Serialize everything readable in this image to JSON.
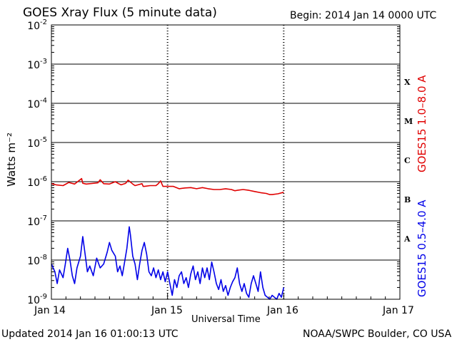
{
  "chart_data": {
    "type": "line",
    "title": "GOES Xray Flux (5 minute data)",
    "begin_label": "Begin:  2014 Jan 14 0000 UTC",
    "xlabel": "Universal Time",
    "ylabel": "Watts m⁻²",
    "x_ticks": [
      "Jan 14",
      "Jan 15",
      "Jan 16",
      "Jan 17"
    ],
    "y_ticks": [
      {
        "base": "10",
        "exp": "-2"
      },
      {
        "base": "10",
        "exp": "-3"
      },
      {
        "base": "10",
        "exp": "-4"
      },
      {
        "base": "10",
        "exp": "-5"
      },
      {
        "base": "10",
        "exp": "-6"
      },
      {
        "base": "10",
        "exp": "-7"
      },
      {
        "base": "10",
        "exp": "-8"
      },
      {
        "base": "10",
        "exp": "-9"
      }
    ],
    "flare_classes": [
      {
        "label": "X",
        "log_flux": -3.5
      },
      {
        "label": "M",
        "log_flux": -4.5
      },
      {
        "label": "C",
        "log_flux": -5.5
      },
      {
        "label": "B",
        "log_flux": -6.5
      },
      {
        "label": "A",
        "log_flux": -7.5
      }
    ],
    "x_range_days": [
      0,
      3
    ],
    "y_range_log10": [
      -9,
      -2
    ],
    "y_scale": "log",
    "grid": true,
    "series": [
      {
        "name": "GOES15 1.0–8.0 A",
        "color": "#e00000",
        "points": [
          [
            0.0,
            -6.05
          ],
          [
            0.04,
            -6.08
          ],
          [
            0.1,
            -6.1
          ],
          [
            0.15,
            -6.02
          ],
          [
            0.2,
            -6.06
          ],
          [
            0.26,
            -5.92
          ],
          [
            0.27,
            -6.04
          ],
          [
            0.3,
            -6.06
          ],
          [
            0.4,
            -6.03
          ],
          [
            0.42,
            -5.95
          ],
          [
            0.45,
            -6.05
          ],
          [
            0.5,
            -6.06
          ],
          [
            0.55,
            -6.0
          ],
          [
            0.58,
            -6.05
          ],
          [
            0.6,
            -6.08
          ],
          [
            0.64,
            -6.04
          ],
          [
            0.66,
            -5.96
          ],
          [
            0.7,
            -6.06
          ],
          [
            0.72,
            -6.1
          ],
          [
            0.78,
            -6.05
          ],
          [
            0.79,
            -6.12
          ],
          [
            0.8,
            -6.12
          ],
          [
            0.85,
            -6.1
          ],
          [
            0.9,
            -6.1
          ],
          [
            0.92,
            -6.05
          ],
          [
            0.94,
            -5.98
          ],
          [
            0.96,
            -6.12
          ],
          [
            1.0,
            -6.12
          ],
          [
            1.05,
            -6.12
          ],
          [
            1.1,
            -6.18
          ],
          [
            1.15,
            -6.16
          ],
          [
            1.2,
            -6.15
          ],
          [
            1.25,
            -6.18
          ],
          [
            1.3,
            -6.15
          ],
          [
            1.35,
            -6.18
          ],
          [
            1.4,
            -6.2
          ],
          [
            1.45,
            -6.2
          ],
          [
            1.5,
            -6.18
          ],
          [
            1.55,
            -6.2
          ],
          [
            1.58,
            -6.23
          ],
          [
            1.6,
            -6.22
          ],
          [
            1.65,
            -6.2
          ],
          [
            1.7,
            -6.22
          ],
          [
            1.75,
            -6.25
          ],
          [
            1.8,
            -6.28
          ],
          [
            1.85,
            -6.3
          ],
          [
            1.88,
            -6.33
          ],
          [
            1.9,
            -6.33
          ],
          [
            1.95,
            -6.31
          ],
          [
            2.0,
            -6.27
          ]
        ]
      },
      {
        "name": "GOES15 0.5–4.0 A",
        "color": "#0000e8",
        "points": [
          [
            0.0,
            -8.1
          ],
          [
            0.03,
            -8.3
          ],
          [
            0.05,
            -8.6
          ],
          [
            0.07,
            -8.25
          ],
          [
            0.1,
            -8.45
          ],
          [
            0.12,
            -8.1
          ],
          [
            0.14,
            -7.7
          ],
          [
            0.16,
            -8.0
          ],
          [
            0.18,
            -8.4
          ],
          [
            0.2,
            -8.6
          ],
          [
            0.22,
            -8.2
          ],
          [
            0.25,
            -7.9
          ],
          [
            0.26,
            -7.65
          ],
          [
            0.27,
            -7.4
          ],
          [
            0.29,
            -7.85
          ],
          [
            0.31,
            -8.3
          ],
          [
            0.33,
            -8.15
          ],
          [
            0.36,
            -8.4
          ],
          [
            0.39,
            -7.95
          ],
          [
            0.42,
            -8.2
          ],
          [
            0.45,
            -8.1
          ],
          [
            0.48,
            -7.8
          ],
          [
            0.5,
            -7.55
          ],
          [
            0.52,
            -7.75
          ],
          [
            0.55,
            -7.9
          ],
          [
            0.57,
            -8.3
          ],
          [
            0.59,
            -8.15
          ],
          [
            0.61,
            -8.4
          ],
          [
            0.63,
            -8.05
          ],
          [
            0.65,
            -7.7
          ],
          [
            0.67,
            -7.15
          ],
          [
            0.68,
            -7.35
          ],
          [
            0.7,
            -7.9
          ],
          [
            0.72,
            -8.1
          ],
          [
            0.74,
            -8.5
          ],
          [
            0.76,
            -8.1
          ],
          [
            0.78,
            -7.75
          ],
          [
            0.8,
            -7.55
          ],
          [
            0.82,
            -7.85
          ],
          [
            0.84,
            -8.3
          ],
          [
            0.86,
            -8.4
          ],
          [
            0.88,
            -8.2
          ],
          [
            0.9,
            -8.45
          ],
          [
            0.92,
            -8.25
          ],
          [
            0.94,
            -8.5
          ],
          [
            0.96,
            -8.3
          ],
          [
            0.98,
            -8.55
          ],
          [
            1.0,
            -8.3
          ],
          [
            1.02,
            -8.6
          ],
          [
            1.04,
            -8.9
          ],
          [
            1.06,
            -8.5
          ],
          [
            1.08,
            -8.7
          ],
          [
            1.1,
            -8.4
          ],
          [
            1.12,
            -8.3
          ],
          [
            1.14,
            -8.6
          ],
          [
            1.16,
            -8.45
          ],
          [
            1.18,
            -8.7
          ],
          [
            1.2,
            -8.35
          ],
          [
            1.22,
            -8.15
          ],
          [
            1.24,
            -8.5
          ],
          [
            1.26,
            -8.3
          ],
          [
            1.28,
            -8.6
          ],
          [
            1.3,
            -8.2
          ],
          [
            1.32,
            -8.45
          ],
          [
            1.34,
            -8.2
          ],
          [
            1.36,
            -8.5
          ],
          [
            1.38,
            -8.05
          ],
          [
            1.4,
            -8.3
          ],
          [
            1.42,
            -8.6
          ],
          [
            1.44,
            -8.75
          ],
          [
            1.46,
            -8.5
          ],
          [
            1.48,
            -8.8
          ],
          [
            1.5,
            -8.65
          ],
          [
            1.52,
            -8.9
          ],
          [
            1.54,
            -8.7
          ],
          [
            1.56,
            -8.55
          ],
          [
            1.58,
            -8.45
          ],
          [
            1.6,
            -8.2
          ],
          [
            1.62,
            -8.6
          ],
          [
            1.64,
            -8.8
          ],
          [
            1.66,
            -8.6
          ],
          [
            1.68,
            -8.85
          ],
          [
            1.7,
            -8.95
          ],
          [
            1.72,
            -8.6
          ],
          [
            1.74,
            -8.4
          ],
          [
            1.76,
            -8.6
          ],
          [
            1.78,
            -8.8
          ],
          [
            1.8,
            -8.3
          ],
          [
            1.82,
            -8.7
          ],
          [
            1.84,
            -8.9
          ],
          [
            1.86,
            -8.95
          ],
          [
            1.88,
            -9.0
          ],
          [
            1.9,
            -8.9
          ],
          [
            1.92,
            -8.95
          ],
          [
            1.94,
            -9.0
          ],
          [
            1.96,
            -8.85
          ],
          [
            1.98,
            -8.95
          ],
          [
            2.0,
            -8.7
          ]
        ]
      }
    ],
    "right_label_long": "GOES15 1.0–8.0 A",
    "right_label_short": "GOES15 0.5–4.0 A"
  },
  "footer": {
    "updated": "Updated 2014 Jan 16 01:00:13 UTC",
    "credit": "NOAA/SWPC Boulder, CO USA"
  }
}
